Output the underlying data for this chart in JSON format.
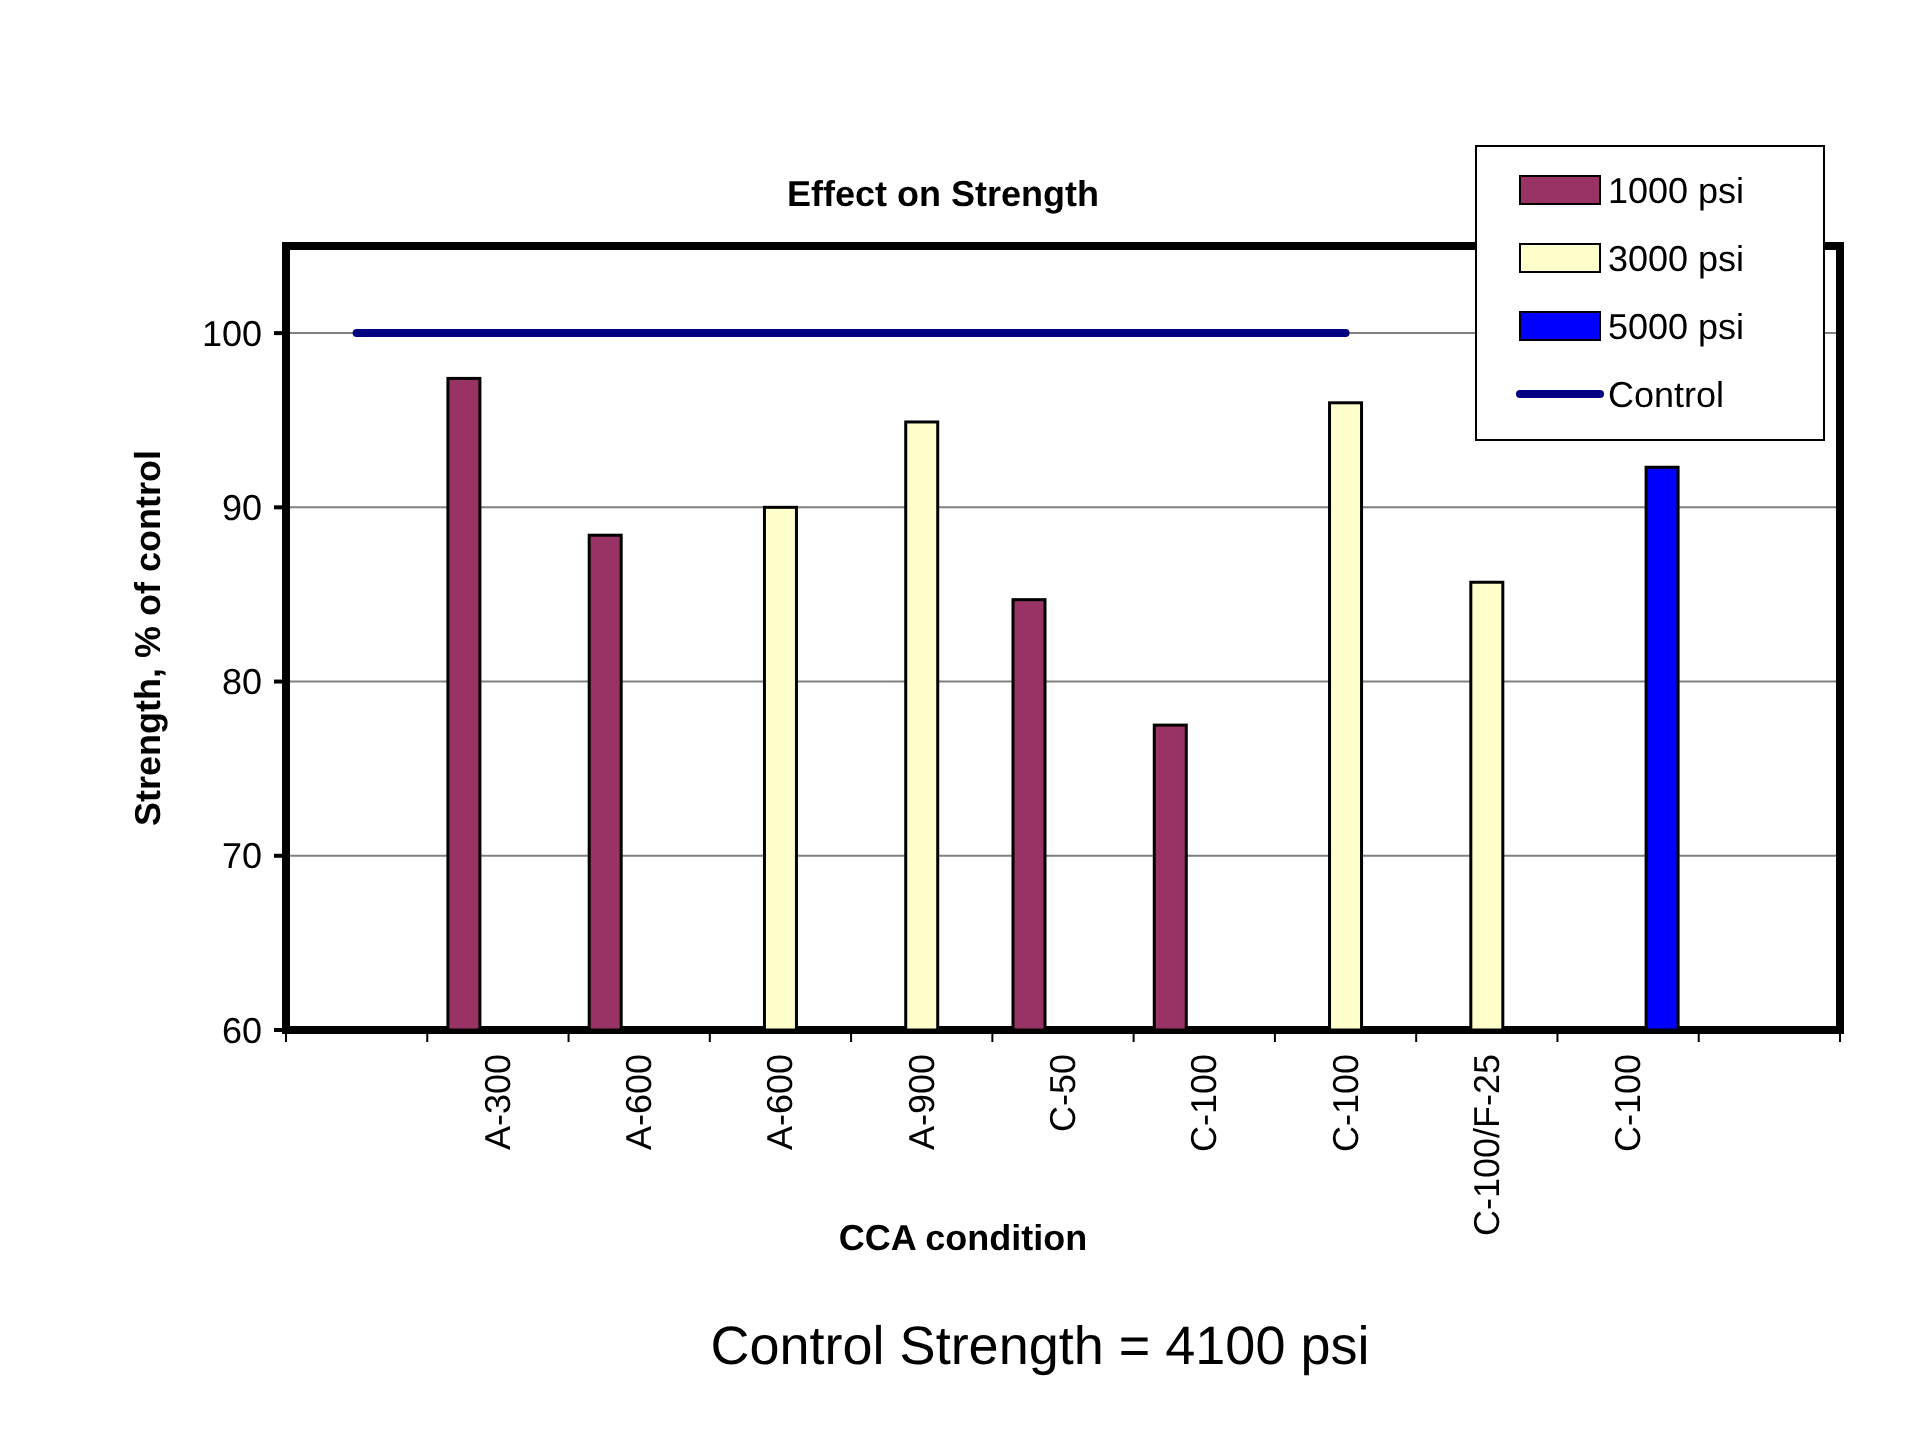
{
  "chart_data": {
    "type": "bar",
    "title": "Effect on Strength",
    "xlabel": "CCA condition",
    "ylabel": "Strength, % of control",
    "categories": [
      null,
      "A-300",
      "A-600",
      "A-600",
      "A-900",
      "C-50",
      "C-100",
      "C-100",
      "C-100/F-25",
      "C-100",
      null
    ],
    "series": [
      {
        "name": "1000 psi",
        "color": "#993366",
        "values": [
          null,
          97.4,
          88.4,
          null,
          null,
          84.7,
          77.5,
          null,
          null,
          null,
          null
        ]
      },
      {
        "name": "3000 psi",
        "color": "#ffffcc",
        "values": [
          null,
          null,
          null,
          90,
          94.9,
          null,
          null,
          96,
          85.7,
          null,
          null
        ]
      },
      {
        "name": "5000 psi",
        "color": "#0000ff",
        "values": [
          null,
          null,
          null,
          null,
          null,
          null,
          null,
          null,
          null,
          92.3,
          null
        ]
      },
      {
        "name": "Control",
        "type": "line",
        "color": "#000080",
        "values": [
          100,
          100,
          100,
          100,
          100,
          100,
          100,
          100,
          null,
          null,
          null
        ]
      }
    ],
    "ylim": [
      60,
      105
    ],
    "yticks": [
      60,
      70,
      80,
      90,
      100
    ],
    "grid": "y",
    "legend": "top right",
    "annotations": [
      "Control Strength = 4100 psi"
    ]
  }
}
